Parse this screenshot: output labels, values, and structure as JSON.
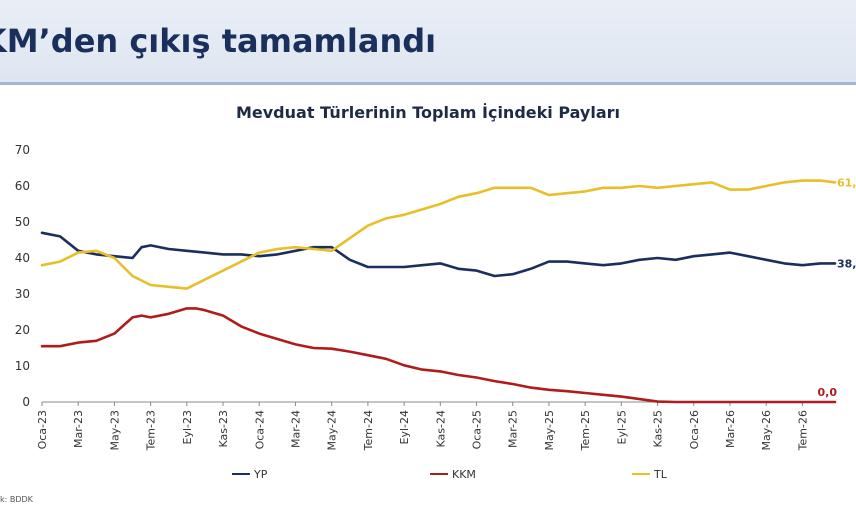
{
  "slide": {
    "title": "KM’den çıkış tamamlandı",
    "source": "k: BDDK"
  },
  "colors": {
    "YP": "#1b2f5c",
    "KKM": "#b01c1c",
    "TL": "#e8bf28",
    "header_bg": "#e3e9f3",
    "axis": "#888888"
  },
  "chart_data": {
    "type": "line",
    "title": "Mevduat Türlerinin Toplam İçindeki Payları",
    "ylim": [
      0,
      70
    ],
    "yticks": [
      0,
      10,
      20,
      30,
      40,
      50,
      60,
      70
    ],
    "x_tick_labels": [
      "Oca-23",
      "Mar-23",
      "May-23",
      "Tem-23",
      "Eyl-23",
      "Kas-23",
      "Oca-24",
      "Mar-24",
      "May-24",
      "Tem-24",
      "Eyl-24",
      "Kas-24",
      "Oca-25",
      "Mar-25",
      "May-25",
      "Tem-25",
      "Eyl-25",
      "Kas-25",
      "Oca-26",
      "Mar-26",
      "May-26",
      "Tem-26"
    ],
    "x_start_month_index": 0,
    "x_end_month_index": 43.8,
    "legend_position": "bottom",
    "series": [
      {
        "name": "YP",
        "end_label": "38,",
        "points": [
          [
            0,
            47
          ],
          [
            1,
            46
          ],
          [
            2,
            42
          ],
          [
            3,
            41
          ],
          [
            4,
            40.5
          ],
          [
            5,
            40
          ],
          [
            5.5,
            43
          ],
          [
            6,
            43.5
          ],
          [
            7,
            42.5
          ],
          [
            8,
            42
          ],
          [
            9,
            41.5
          ],
          [
            10,
            41
          ],
          [
            11,
            41
          ],
          [
            12,
            40.5
          ],
          [
            13,
            41
          ],
          [
            14,
            42
          ],
          [
            15,
            43
          ],
          [
            16,
            43
          ],
          [
            17,
            39.5
          ],
          [
            18,
            37.5
          ],
          [
            19,
            37.5
          ],
          [
            20,
            37.5
          ],
          [
            21,
            38
          ],
          [
            22,
            38.5
          ],
          [
            23,
            37
          ],
          [
            24,
            36.5
          ],
          [
            25,
            35
          ],
          [
            26,
            35.5
          ],
          [
            27,
            37
          ],
          [
            28,
            39
          ],
          [
            29,
            39
          ],
          [
            30,
            38.5
          ],
          [
            31,
            38
          ],
          [
            32,
            38.5
          ],
          [
            33,
            39.5
          ],
          [
            34,
            40
          ],
          [
            35,
            39.5
          ],
          [
            36,
            40.5
          ],
          [
            37,
            41
          ],
          [
            38,
            41.5
          ],
          [
            39,
            40.5
          ],
          [
            40,
            39.5
          ],
          [
            41,
            38.5
          ],
          [
            42,
            38
          ],
          [
            43,
            38.5
          ],
          [
            43.8,
            38.5
          ]
        ]
      },
      {
        "name": "KKM",
        "end_label": "0,0",
        "points": [
          [
            0,
            15.5
          ],
          [
            1,
            15.5
          ],
          [
            2,
            16.5
          ],
          [
            3,
            17
          ],
          [
            4,
            19
          ],
          [
            5,
            23.5
          ],
          [
            5.5,
            24
          ],
          [
            6,
            23.5
          ],
          [
            7,
            24.5
          ],
          [
            8,
            26
          ],
          [
            8.5,
            26
          ],
          [
            9,
            25.5
          ],
          [
            10,
            24
          ],
          [
            11,
            21
          ],
          [
            12,
            19
          ],
          [
            13,
            17.5
          ],
          [
            14,
            16
          ],
          [
            15,
            15
          ],
          [
            16,
            14.8
          ],
          [
            17,
            14
          ],
          [
            18,
            13
          ],
          [
            19,
            12
          ],
          [
            20,
            10.2
          ],
          [
            21,
            9
          ],
          [
            22,
            8.5
          ],
          [
            23,
            7.5
          ],
          [
            24,
            6.8
          ],
          [
            25,
            5.8
          ],
          [
            26,
            5
          ],
          [
            27,
            4
          ],
          [
            28,
            3.4
          ],
          [
            29,
            3
          ],
          [
            30,
            2.5
          ],
          [
            31,
            2
          ],
          [
            32,
            1.5
          ],
          [
            33,
            0.8
          ],
          [
            34,
            0.1
          ],
          [
            35,
            0
          ],
          [
            36,
            0
          ],
          [
            37,
            0
          ],
          [
            38,
            0
          ],
          [
            39,
            0
          ],
          [
            40,
            0
          ],
          [
            41,
            0
          ],
          [
            42,
            0
          ],
          [
            43,
            0
          ],
          [
            43.8,
            0
          ]
        ]
      },
      {
        "name": "TL",
        "end_label": "61,",
        "points": [
          [
            0,
            38
          ],
          [
            1,
            39
          ],
          [
            2,
            41.5
          ],
          [
            3,
            42
          ],
          [
            4,
            40
          ],
          [
            5,
            35
          ],
          [
            6,
            32.5
          ],
          [
            7,
            32
          ],
          [
            8,
            31.5
          ],
          [
            9,
            34
          ],
          [
            10,
            36.5
          ],
          [
            11,
            39
          ],
          [
            12,
            41.5
          ],
          [
            13,
            42.5
          ],
          [
            14,
            43
          ],
          [
            15,
            42.5
          ],
          [
            16,
            42
          ],
          [
            17,
            45.5
          ],
          [
            18,
            49
          ],
          [
            19,
            51
          ],
          [
            20,
            52
          ],
          [
            21,
            53.5
          ],
          [
            22,
            55
          ],
          [
            23,
            57
          ],
          [
            24,
            58
          ],
          [
            25,
            59.5
          ],
          [
            26,
            59.5
          ],
          [
            27,
            59.5
          ],
          [
            28,
            57.5
          ],
          [
            29,
            58
          ],
          [
            30,
            58.5
          ],
          [
            31,
            59.5
          ],
          [
            32,
            59.5
          ],
          [
            33,
            60
          ],
          [
            34,
            59.5
          ],
          [
            35,
            60
          ],
          [
            36,
            60.5
          ],
          [
            37,
            61
          ],
          [
            38,
            59
          ],
          [
            39,
            59
          ],
          [
            40,
            60
          ],
          [
            41,
            61
          ],
          [
            42,
            61.5
          ],
          [
            43,
            61.5
          ],
          [
            43.8,
            61
          ]
        ]
      }
    ]
  }
}
